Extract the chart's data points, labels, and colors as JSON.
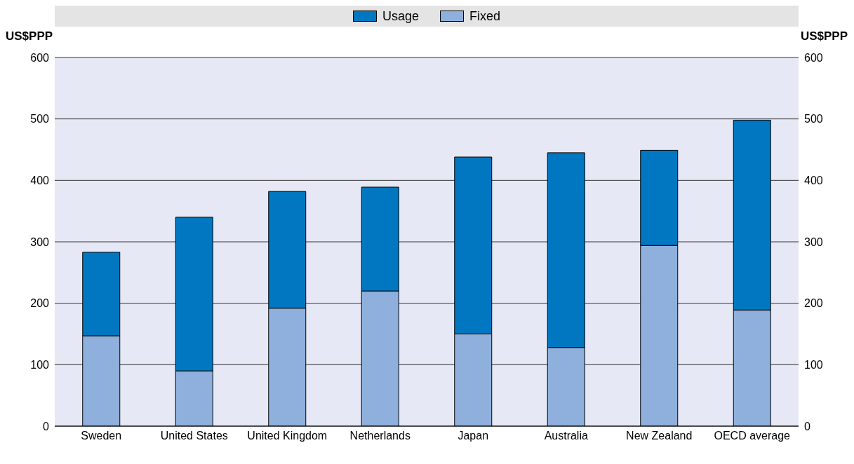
{
  "chart_data": {
    "type": "bar",
    "stacked": true,
    "ylabel": "US$PPP",
    "y2label": "US$PPP",
    "categories": [
      "Sweden",
      "United States",
      "United Kingdom",
      "Netherlands",
      "Japan",
      "Australia",
      "New Zealand",
      "OECD average"
    ],
    "series": [
      {
        "name": "Fixed",
        "color": "#8fb0dc",
        "values": [
          147,
          90,
          192,
          220,
          150,
          128,
          294,
          189
        ]
      },
      {
        "name": "Usage",
        "color": "#0077c0",
        "values": [
          136,
          250,
          190,
          169,
          288,
          317,
          155,
          309
        ]
      }
    ],
    "ylim": [
      0,
      600
    ],
    "yticks": [
      0,
      100,
      200,
      300,
      400,
      500,
      600
    ],
    "y2lim": [
      0,
      600
    ],
    "y2ticks": [
      0,
      100,
      200,
      300,
      400,
      500,
      600
    ],
    "grid": "y",
    "legend": "top"
  }
}
